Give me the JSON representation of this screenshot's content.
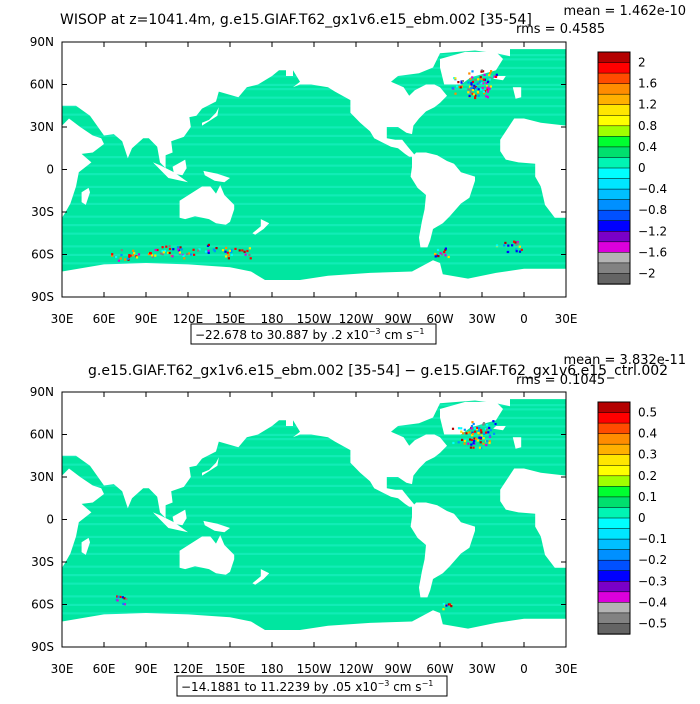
{
  "palette": {
    "ocean": "#00e6a0",
    "ocean_alt": "#20f0c0",
    "land": "#ffffff",
    "frame": "#000000"
  },
  "panels": [
    {
      "title": "WISOP at z=1041.4m, g.e15.GIAF.T62_gx1v6.e15_ebm.002 [35-54]",
      "stat_mean": "mean = 1.462e-10",
      "stat_rms": "rms = 0.4585",
      "range_text": "−22.678 to 30.887 by .2 x10",
      "range_exp": "−3",
      "range_unit": " cm s",
      "range_unit_exp": "−1"
    },
    {
      "title": "g.e15.GIAF.T62_gx1v6.e15_ebm.002 [35-54] − g.e15.GIAF.T62_gx1v6.e15_ctrl.002",
      "stat_mean": "mean = 3.832e-11",
      "stat_rms": "rms = 0.1045",
      "range_text": "−14.1881 to 11.2239 by .05 x10",
      "range_exp": "−3",
      "range_unit": " cm s",
      "range_unit_exp": "−1"
    }
  ],
  "chart_data": [
    {
      "type": "heatmap",
      "title": "WISOP at z=1041.4m, g.e15.GIAF.T62_gx1v6.e15_ebm.002 [35-54]",
      "annotations": [
        "mean = 1.462e-10",
        "rms = 0.4585"
      ],
      "x_ticks": [
        "30E",
        "60E",
        "90E",
        "120E",
        "150E",
        "180",
        "150W",
        "120W",
        "90W",
        "60W",
        "30W",
        "0",
        "30E"
      ],
      "y_ticks": [
        "90N",
        "60N",
        "30N",
        "0",
        "30S",
        "60S",
        "90S"
      ],
      "xlim": [
        30,
        390
      ],
      "ylim": [
        -90,
        90
      ],
      "colorbar": {
        "labels": [
          "2",
          "1.6",
          "1.2",
          "0.8",
          "0.4",
          "0",
          "−0.4",
          "−0.8",
          "−1.2",
          "−1.6",
          "−2"
        ],
        "colors": [
          "#b40000",
          "#ff0000",
          "#ff4b00",
          "#ff8c00",
          "#ffb000",
          "#ffe600",
          "#ffff00",
          "#a0ff00",
          "#00ff30",
          "#00e06e",
          "#00f5b4",
          "#00ffff",
          "#00e6ff",
          "#00c0ff",
          "#0090ff",
          "#0050ff",
          "#0000ff",
          "#7a00c8",
          "#dc00dc",
          "#b4b4b4",
          "#828282",
          "#646464"
        ]
      },
      "field_summary": "Nearly uniform near-zero values (green/cyan) over the ocean with strong positive and negative extremes in the North Atlantic (Labrador/Nordic seas) and along the Antarctic Circumpolar Current near 60S."
    },
    {
      "type": "heatmap",
      "title": "g.e15.GIAF.T62_gx1v6.e15_ebm.002 [35-54] − g.e15.GIAF.T62_gx1v6.e15_ctrl.002",
      "annotations": [
        "mean = 3.832e-11",
        "rms = 0.1045"
      ],
      "x_ticks": [
        "30E",
        "60E",
        "90E",
        "120E",
        "150E",
        "180",
        "150W",
        "120W",
        "90W",
        "60W",
        "30W",
        "0",
        "30E"
      ],
      "y_ticks": [
        "90N",
        "60N",
        "30N",
        "0",
        "30S",
        "60S",
        "90S"
      ],
      "xlim": [
        30,
        390
      ],
      "ylim": [
        -90,
        90
      ],
      "colorbar": {
        "labels": [
          "0.5",
          "0.4",
          "0.3",
          "0.2",
          "0.1",
          "0",
          "−0.1",
          "−0.2",
          "−0.3",
          "−0.4",
          "−0.5"
        ],
        "colors": [
          "#b40000",
          "#ff0000",
          "#ff4b00",
          "#ff8c00",
          "#ffb000",
          "#ffe600",
          "#ffff00",
          "#a0ff00",
          "#00ff30",
          "#00e06e",
          "#00f5b4",
          "#00ffff",
          "#00e6ff",
          "#00c0ff",
          "#0090ff",
          "#0050ff",
          "#0000ff",
          "#7a00c8",
          "#dc00dc",
          "#b4b4b4",
          "#828282",
          "#646464"
        ]
      },
      "field_summary": "Difference field is close to zero almost everywhere; isolated extremes in the North Atlantic near 60N and a few points near 60S."
    }
  ]
}
